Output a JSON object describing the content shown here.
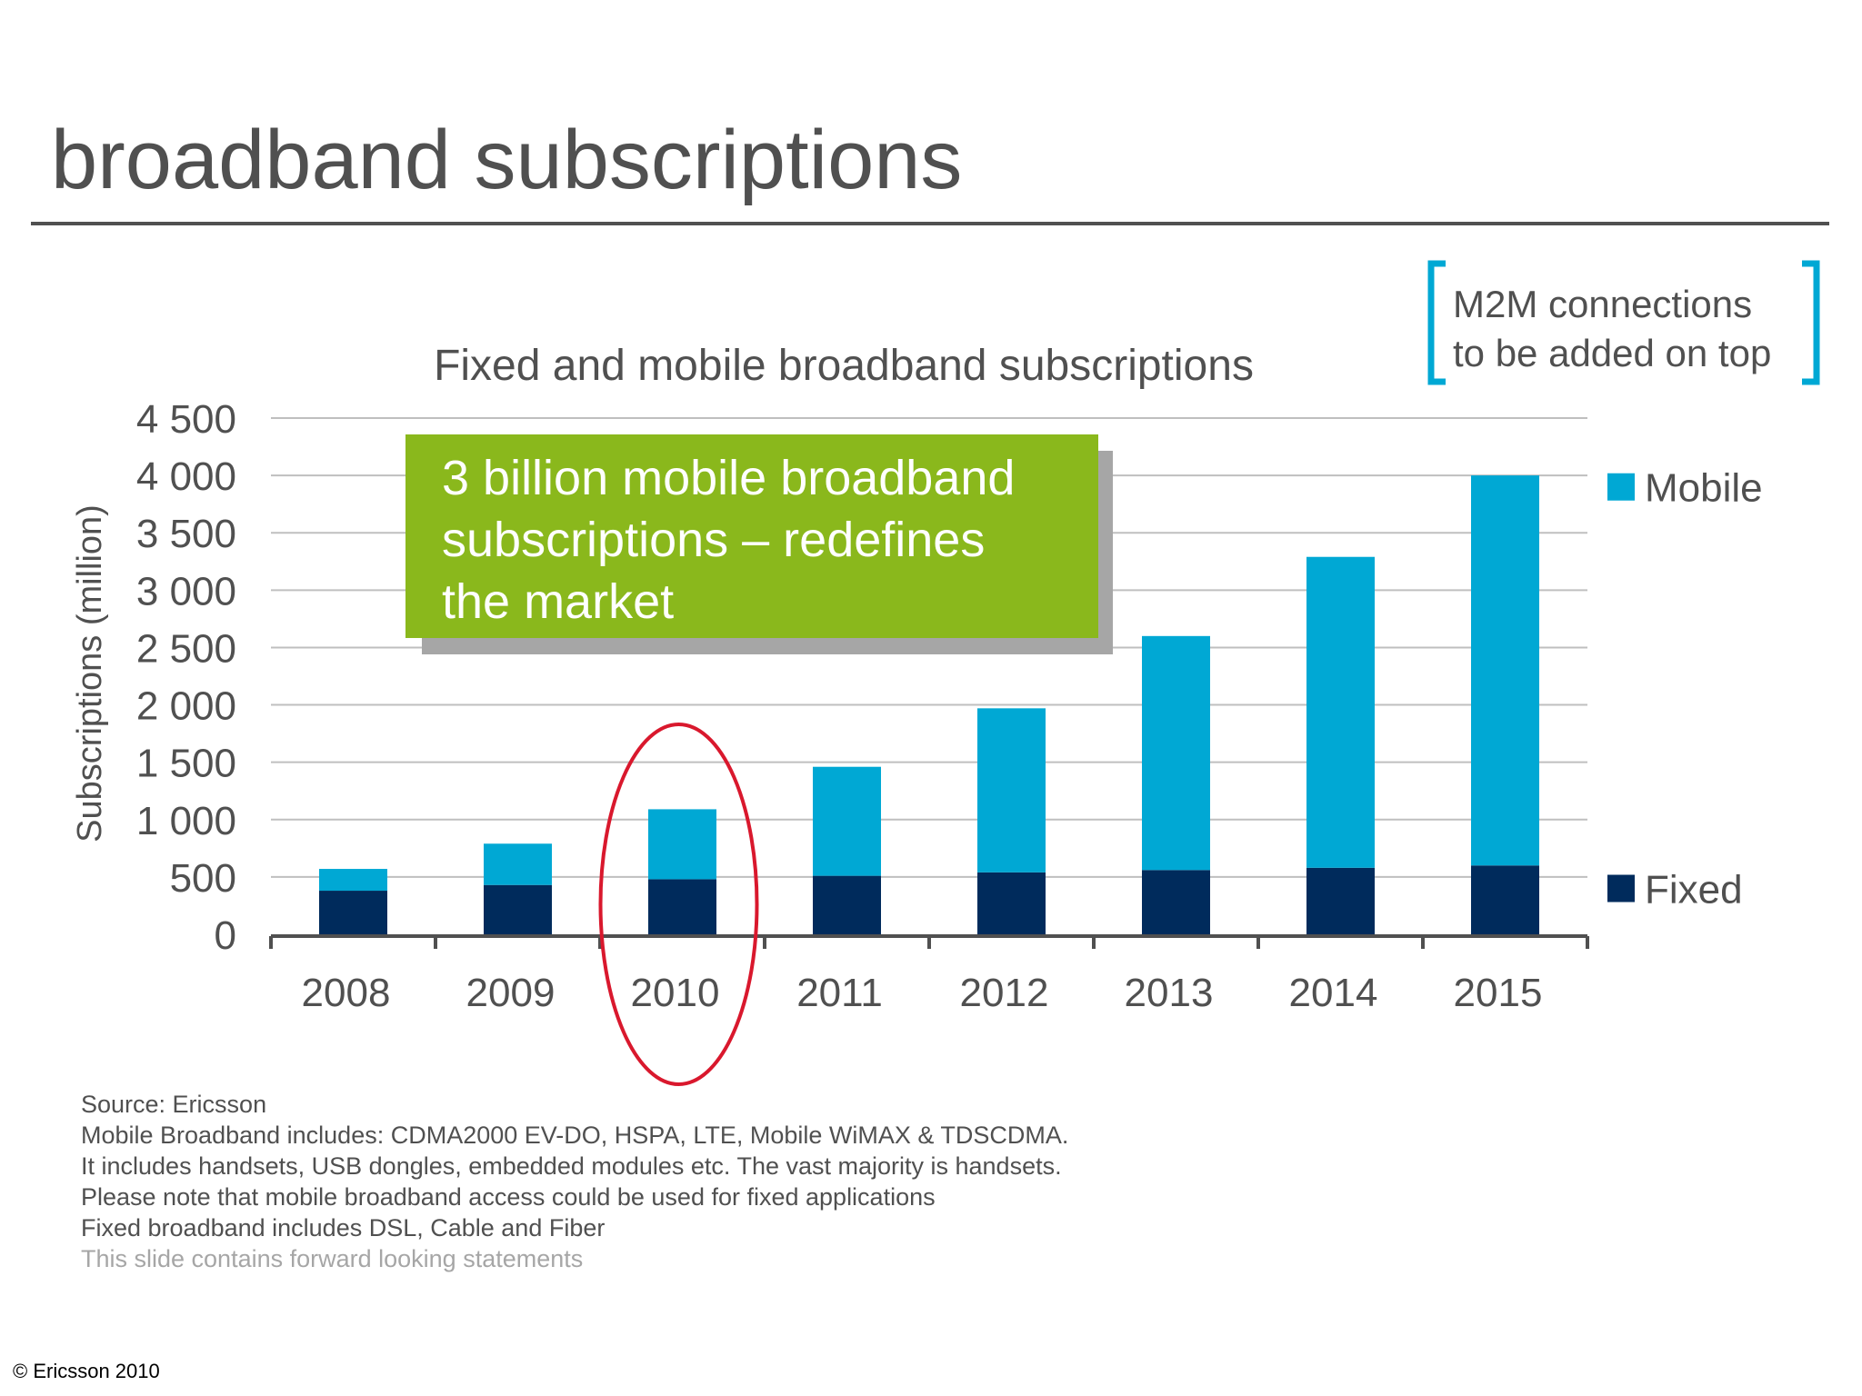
{
  "slide": {
    "title": "broadband subscriptions",
    "callout_lines": [
      "3 billion mobile broadband",
      "subscriptions – redefines",
      "the market"
    ],
    "m2m_lines": [
      "M2M connections",
      "to be added on top"
    ],
    "footnotes": [
      "Source: Ericsson",
      "Mobile Broadband includes: CDMA2000 EV-DO, HSPA, LTE, Mobile WiMAX & TDSCDMA.",
      "It includes handsets, USB dongles, embedded modules etc. The vast majority is handsets.",
      "Please note that mobile broadband access could be used for fixed applications",
      "Fixed broadband includes DSL, Cable and Fiber"
    ],
    "disclaimer": "This slide contains forward looking statements",
    "copyright": "© Ericsson 2010"
  },
  "colors": {
    "mobile": "#00a8d4",
    "fixed": "#002b5c",
    "callout": "#8ab81c",
    "highlight_ellipse": "#d9182d",
    "bracket": "#00a8d4"
  },
  "chart_data": {
    "type": "bar",
    "stacked": true,
    "title": "Fixed and mobile broadband subscriptions",
    "xlabel": "",
    "ylabel": "Subscriptions (million)",
    "ylim": [
      0,
      4500
    ],
    "y_ticks": [
      0,
      500,
      1000,
      1500,
      2000,
      2500,
      3000,
      3500,
      4000,
      4500
    ],
    "y_tick_labels": [
      "0",
      "500",
      "1 000",
      "1 500",
      "2 000",
      "2 500",
      "3 000",
      "3 500",
      "4 000",
      "4 500"
    ],
    "grid": true,
    "legend_position": "right",
    "categories": [
      "2008",
      "2009",
      "2010",
      "2011",
      "2012",
      "2013",
      "2014",
      "2015"
    ],
    "highlighted_category": "2010",
    "series": [
      {
        "name": "Fixed",
        "values": [
          380,
          430,
          480,
          510,
          540,
          560,
          580,
          600
        ]
      },
      {
        "name": "Mobile",
        "values": [
          190,
          360,
          610,
          950,
          1430,
          2040,
          2710,
          3400
        ]
      }
    ]
  }
}
